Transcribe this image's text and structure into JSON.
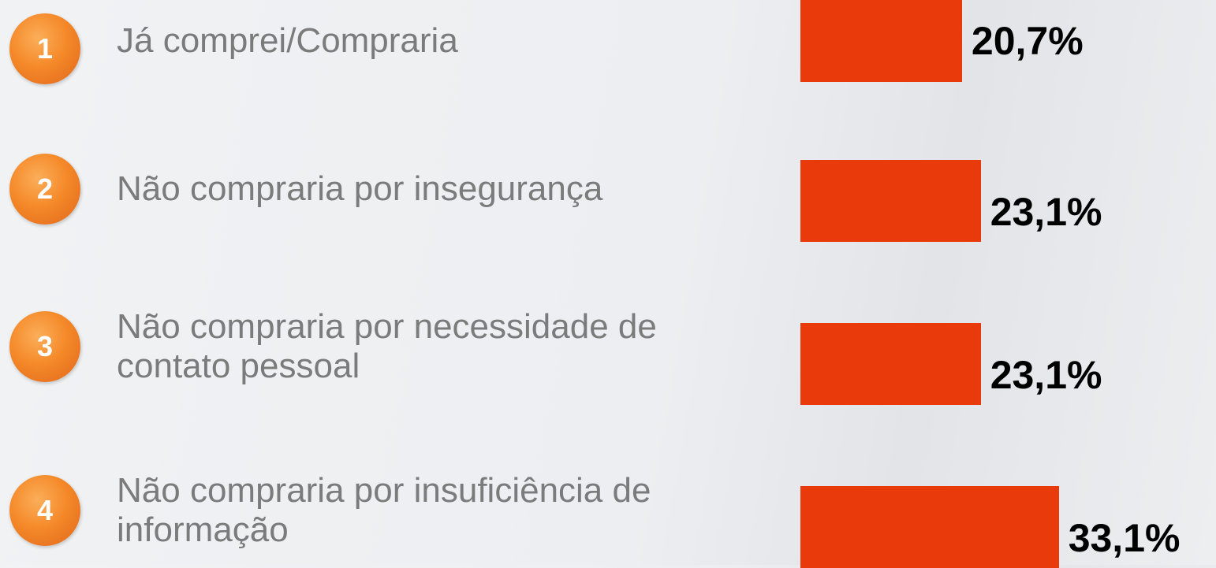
{
  "chart_data": {
    "type": "bar",
    "orientation": "horizontal",
    "item_numbers": [
      1,
      2,
      3,
      4
    ],
    "categories": [
      "Já comprei/Compraria",
      "Não compraria por insegurança",
      "Não compraria por necessidade de contato pessoal",
      "Não compraria por insuficiência de informação"
    ],
    "values": [
      20.7,
      23.1,
      23.1,
      33.1
    ],
    "value_labels": [
      "20,7%",
      "23,1%",
      "23,1%",
      "33,1%"
    ],
    "color": "#e83a0a"
  }
}
